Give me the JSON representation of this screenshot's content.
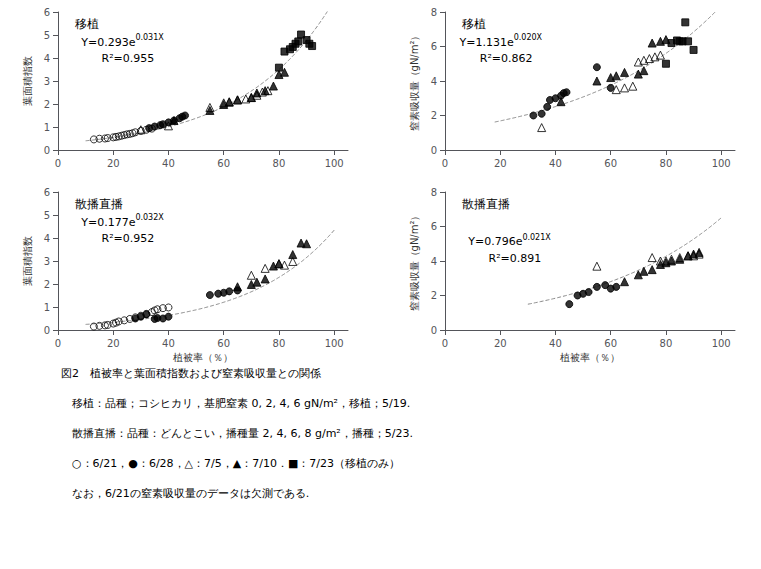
{
  "chart_data": [
    {
      "type": "scatter",
      "title": "移植",
      "ylabel": "葉面積指数",
      "xlim": [
        0,
        105
      ],
      "xticks": [
        0,
        20,
        40,
        60,
        80,
        100
      ],
      "ylim": [
        0,
        6
      ],
      "yticks": [
        0,
        1,
        2,
        3,
        4,
        5,
        6
      ],
      "grid": false,
      "annotations": [
        {
          "text": "Y=0.293e",
          "superscript": "0.031X"
        },
        {
          "text": "R²=0.955"
        }
      ],
      "series": [
        {
          "marker": "open_circle",
          "color": "#000000",
          "x": [
            13,
            15,
            17,
            18,
            20,
            21,
            22,
            23,
            24,
            25,
            26,
            27,
            28,
            30,
            32,
            34
          ],
          "values": [
            0.46,
            0.49,
            0.5,
            0.52,
            0.55,
            0.57,
            0.59,
            0.62,
            0.65,
            0.68,
            0.7,
            0.73,
            0.77,
            0.83,
            0.88,
            0.93
          ]
        },
        {
          "marker": "filled_circle",
          "color": "#000000",
          "x": [
            33,
            35,
            37,
            38,
            40,
            42,
            44,
            45,
            46
          ],
          "values": [
            0.95,
            1.02,
            1.08,
            1.12,
            1.2,
            1.28,
            1.38,
            1.45,
            1.5
          ]
        },
        {
          "marker": "open_triangle",
          "color": "#000000",
          "x": [
            30,
            40,
            55,
            60,
            62,
            65,
            68,
            70,
            72,
            74,
            76
          ],
          "values": [
            0.88,
            1.05,
            1.85,
            2.05,
            2.1,
            2.18,
            2.22,
            2.28,
            2.38,
            2.52,
            2.58
          ]
        },
        {
          "marker": "filled_triangle",
          "color": "#000000",
          "x": [
            42,
            55,
            60,
            62,
            65,
            70,
            72,
            75,
            78,
            80,
            82
          ],
          "values": [
            1.28,
            1.72,
            1.98,
            2.08,
            2.18,
            2.28,
            2.48,
            2.58,
            2.78,
            3.28,
            3.38
          ]
        },
        {
          "marker": "filled_square",
          "color": "#000000",
          "x": [
            80,
            82,
            84,
            85,
            86,
            87,
            88,
            90,
            91,
            92
          ],
          "values": [
            3.58,
            4.28,
            4.38,
            4.48,
            4.62,
            4.72,
            5.02,
            4.78,
            4.62,
            4.52
          ]
        },
        {
          "type": "line",
          "line_style": "dashed",
          "color": "#888888",
          "fit": {
            "a": 0.293,
            "b": 0.031
          },
          "x_range": [
            10,
            100
          ]
        }
      ]
    },
    {
      "type": "scatter",
      "title": "移植",
      "ylabel": "窒素吸収量（gN/m²）",
      "xlim": [
        0,
        105
      ],
      "xticks": [
        0,
        20,
        40,
        60,
        80,
        100
      ],
      "ylim": [
        0,
        8
      ],
      "yticks": [
        0,
        2,
        4,
        6,
        8
      ],
      "grid": false,
      "annotations": [
        {
          "text": "Y=1.131e",
          "superscript": "0.020X"
        },
        {
          "text": "R²=0.862"
        }
      ],
      "series": [
        {
          "marker": "filled_circle",
          "color": "#000000",
          "x": [
            32,
            35,
            37,
            38,
            40,
            42,
            43,
            44,
            55,
            60
          ],
          "values": [
            2.0,
            2.1,
            2.5,
            2.9,
            3.0,
            3.15,
            3.3,
            3.35,
            4.8,
            3.6
          ]
        },
        {
          "marker": "open_triangle",
          "color": "#000000",
          "x": [
            35,
            62,
            65,
            68,
            70,
            72,
            74,
            76,
            78
          ],
          "values": [
            1.3,
            3.5,
            3.6,
            3.7,
            5.1,
            5.2,
            5.3,
            5.4,
            5.5
          ]
        },
        {
          "marker": "filled_triangle",
          "color": "#000000",
          "x": [
            42,
            55,
            60,
            62,
            65,
            70,
            72,
            75,
            78,
            80
          ],
          "values": [
            2.8,
            4.0,
            4.2,
            4.3,
            4.5,
            4.4,
            4.6,
            6.2,
            6.3,
            6.4
          ]
        },
        {
          "marker": "filled_square",
          "color": "#000000",
          "x": [
            80,
            82,
            84,
            85,
            86,
            87,
            88,
            90
          ],
          "values": [
            5.0,
            6.2,
            6.35,
            6.3,
            6.3,
            7.4,
            6.3,
            5.8
          ]
        },
        {
          "type": "line",
          "line_style": "dashed",
          "color": "#888888",
          "fit": {
            "a": 1.131,
            "b": 0.02
          },
          "x_range": [
            18,
            100
          ]
        }
      ]
    },
    {
      "type": "scatter",
      "title": "散播直播",
      "ylabel": "葉面積指数",
      "xlabel": "植被率（％）",
      "xlim": [
        0,
        105
      ],
      "xticks": [
        0,
        20,
        40,
        60,
        80,
        100
      ],
      "ylim": [
        0,
        6
      ],
      "yticks": [
        0,
        1,
        2,
        3,
        4,
        5,
        6
      ],
      "grid": false,
      "annotations": [
        {
          "text": "Y=0.177e",
          "superscript": "0.032X"
        },
        {
          "text": "R²=0.952"
        }
      ],
      "series": [
        {
          "marker": "open_circle",
          "color": "#000000",
          "x": [
            13,
            15,
            17,
            18,
            20,
            21,
            22,
            24,
            26,
            28,
            30,
            32,
            34,
            35,
            36,
            38,
            40
          ],
          "values": [
            0.15,
            0.18,
            0.2,
            0.22,
            0.28,
            0.32,
            0.37,
            0.42,
            0.48,
            0.55,
            0.62,
            0.7,
            0.78,
            0.85,
            0.9,
            0.95,
            0.98
          ]
        },
        {
          "marker": "filled_circle",
          "color": "#000000",
          "x": [
            28,
            30,
            32,
            35,
            36,
            38,
            40,
            55,
            58,
            60,
            62,
            65
          ],
          "values": [
            0.5,
            0.58,
            0.68,
            0.48,
            0.52,
            0.5,
            0.58,
            1.52,
            1.58,
            1.62,
            1.68,
            1.72
          ]
        },
        {
          "marker": "open_triangle",
          "color": "#000000",
          "x": [
            70,
            75,
            80,
            82,
            85
          ],
          "values": [
            2.38,
            2.68,
            2.88,
            2.82,
            2.98
          ]
        },
        {
          "marker": "filled_triangle",
          "color": "#000000",
          "x": [
            65,
            70,
            72,
            75,
            78,
            80,
            85,
            88,
            90
          ],
          "values": [
            1.88,
            1.98,
            2.08,
            2.22,
            2.78,
            2.88,
            3.28,
            3.78,
            3.75
          ]
        },
        {
          "type": "line",
          "line_style": "dashed",
          "color": "#888888",
          "fit": {
            "a": 0.177,
            "b": 0.032
          },
          "x_range": [
            10,
            100
          ]
        }
      ]
    },
    {
      "type": "scatter",
      "title": "散播直播",
      "ylabel": "窒素吸収量（gN/m²）",
      "xlabel": "植被率（％）",
      "xlim": [
        0,
        105
      ],
      "xticks": [
        0,
        20,
        40,
        60,
        80,
        100
      ],
      "ylim": [
        0,
        8
      ],
      "yticks": [
        0,
        2,
        4,
        6,
        8
      ],
      "grid": false,
      "annotations": [
        {
          "text": "Y=0.796e",
          "superscript": "0.021X"
        },
        {
          "text": "R²=0.891"
        }
      ],
      "series": [
        {
          "marker": "filled_circle",
          "color": "#000000",
          "x": [
            45,
            48,
            50,
            52,
            55,
            58,
            60,
            62
          ],
          "values": [
            1.5,
            2.0,
            2.1,
            2.2,
            2.5,
            2.6,
            2.4,
            2.5
          ]
        },
        {
          "marker": "open_triangle",
          "color": "#000000",
          "x": [
            55,
            75,
            78,
            80,
            82,
            85,
            88,
            90,
            92
          ],
          "values": [
            3.7,
            4.2,
            4.0,
            4.0,
            4.1,
            4.2,
            4.3,
            4.3,
            4.4
          ]
        },
        {
          "marker": "filled_triangle",
          "color": "#000000",
          "x": [
            65,
            70,
            72,
            75,
            78,
            80,
            82,
            85,
            88,
            90,
            92
          ],
          "values": [
            2.8,
            3.2,
            3.4,
            3.5,
            3.8,
            3.9,
            4.0,
            4.1,
            4.3,
            4.4,
            4.5
          ]
        },
        {
          "type": "line",
          "line_style": "dashed",
          "color": "#888888",
          "fit": {
            "a": 0.796,
            "b": 0.021
          },
          "x_range": [
            30,
            100
          ]
        }
      ]
    }
  ],
  "caption": [
    "図2　植被率と葉面積指数および窒素吸収量との関係",
    "　移植：品種；コシヒカリ，基肥窒素 0, 2, 4, 6 gN/m²，移植；5/19.",
    "　散播直播：品種：どんとこい，播種量 2, 4, 6, 8 g/m²，播種；5/23.",
    "　○：6/21，●：6/28，△：7/5，▲：7/10．■：7/23（移植のみ）",
    "　なお，6/21の窒素吸収量のデータは欠測である."
  ]
}
